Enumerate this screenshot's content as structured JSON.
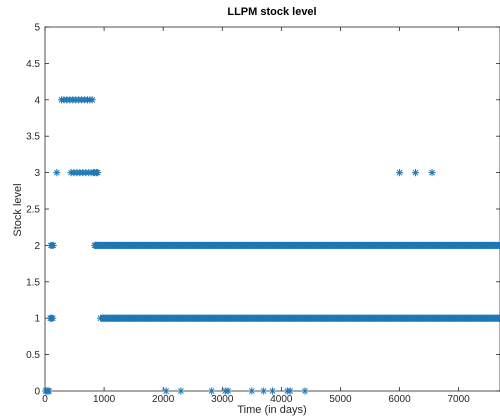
{
  "chart_data": {
    "type": "scatter",
    "title": "LLPM stock level",
    "xlabel": "Time (in days)",
    "ylabel": "Stock level",
    "xlim": [
      0,
      7700
    ],
    "ylim": [
      0,
      5
    ],
    "xticks": [
      0,
      1000,
      2000,
      3000,
      4000,
      5000,
      6000,
      7000
    ],
    "xtick_labels": [
      "0",
      "1000",
      "2000",
      "3000",
      "4000",
      "5000",
      "6000",
      "7000"
    ],
    "yticks": [
      0,
      0.5,
      1,
      1.5,
      2,
      2.5,
      3,
      3.5,
      4,
      4.5,
      5
    ],
    "ytick_labels": [
      "0",
      "0.5",
      "1",
      "1.5",
      "2",
      "2.5",
      "3",
      "3.5",
      "4",
      "4.5",
      "5"
    ],
    "marker": "asterisk",
    "grid": false,
    "series": [
      {
        "color": "#1f77b4",
        "points": [
          {
            "x": 10,
            "y": 0
          },
          {
            "x": 30,
            "y": 0
          },
          {
            "x": 50,
            "y": 0
          },
          {
            "x": 70,
            "y": 0
          },
          {
            "x": 90,
            "y": 1
          },
          {
            "x": 110,
            "y": 1
          },
          {
            "x": 130,
            "y": 1
          },
          {
            "x": 100,
            "y": 2
          },
          {
            "x": 120,
            "y": 2
          },
          {
            "x": 140,
            "y": 2
          },
          {
            "x": 200,
            "y": 3
          },
          {
            "x": 280,
            "y": 4
          },
          {
            "x": 320,
            "y": 4
          },
          {
            "x": 370,
            "y": 4
          },
          {
            "x": 420,
            "y": 4
          },
          {
            "x": 440,
            "y": 3
          },
          {
            "x": 470,
            "y": 4
          },
          {
            "x": 490,
            "y": 3
          },
          {
            "x": 520,
            "y": 4
          },
          {
            "x": 540,
            "y": 3
          },
          {
            "x": 570,
            "y": 4
          },
          {
            "x": 590,
            "y": 3
          },
          {
            "x": 620,
            "y": 4
          },
          {
            "x": 640,
            "y": 3
          },
          {
            "x": 670,
            "y": 4
          },
          {
            "x": 690,
            "y": 3
          },
          {
            "x": 720,
            "y": 4
          },
          {
            "x": 740,
            "y": 3
          },
          {
            "x": 760,
            "y": 4
          },
          {
            "x": 780,
            "y": 3
          },
          {
            "x": 800,
            "y": 4
          },
          {
            "x": 820,
            "y": 3
          },
          {
            "x": 840,
            "y": 3
          },
          {
            "x": 860,
            "y": 2
          },
          {
            "x": 870,
            "y": 3
          },
          {
            "x": 890,
            "y": 3
          },
          {
            "x": 900,
            "y": 2
          },
          {
            "x": 2050,
            "y": 0
          },
          {
            "x": 2300,
            "y": 0
          },
          {
            "x": 2820,
            "y": 0
          },
          {
            "x": 3050,
            "y": 0
          },
          {
            "x": 3100,
            "y": 0
          },
          {
            "x": 3500,
            "y": 0
          },
          {
            "x": 3700,
            "y": 0
          },
          {
            "x": 3850,
            "y": 0
          },
          {
            "x": 4100,
            "y": 0
          },
          {
            "x": 4150,
            "y": 0
          },
          {
            "x": 4400,
            "y": 0
          },
          {
            "x": 6000,
            "y": 3
          },
          {
            "x": 6270,
            "y": 3
          },
          {
            "x": 6550,
            "y": 3
          }
        ]
      }
    ],
    "dense_segments": [
      {
        "y": 2,
        "x_start": 840,
        "x_end": 7700
      },
      {
        "y": 1,
        "x_start": 940,
        "x_end": 7700
      }
    ]
  }
}
